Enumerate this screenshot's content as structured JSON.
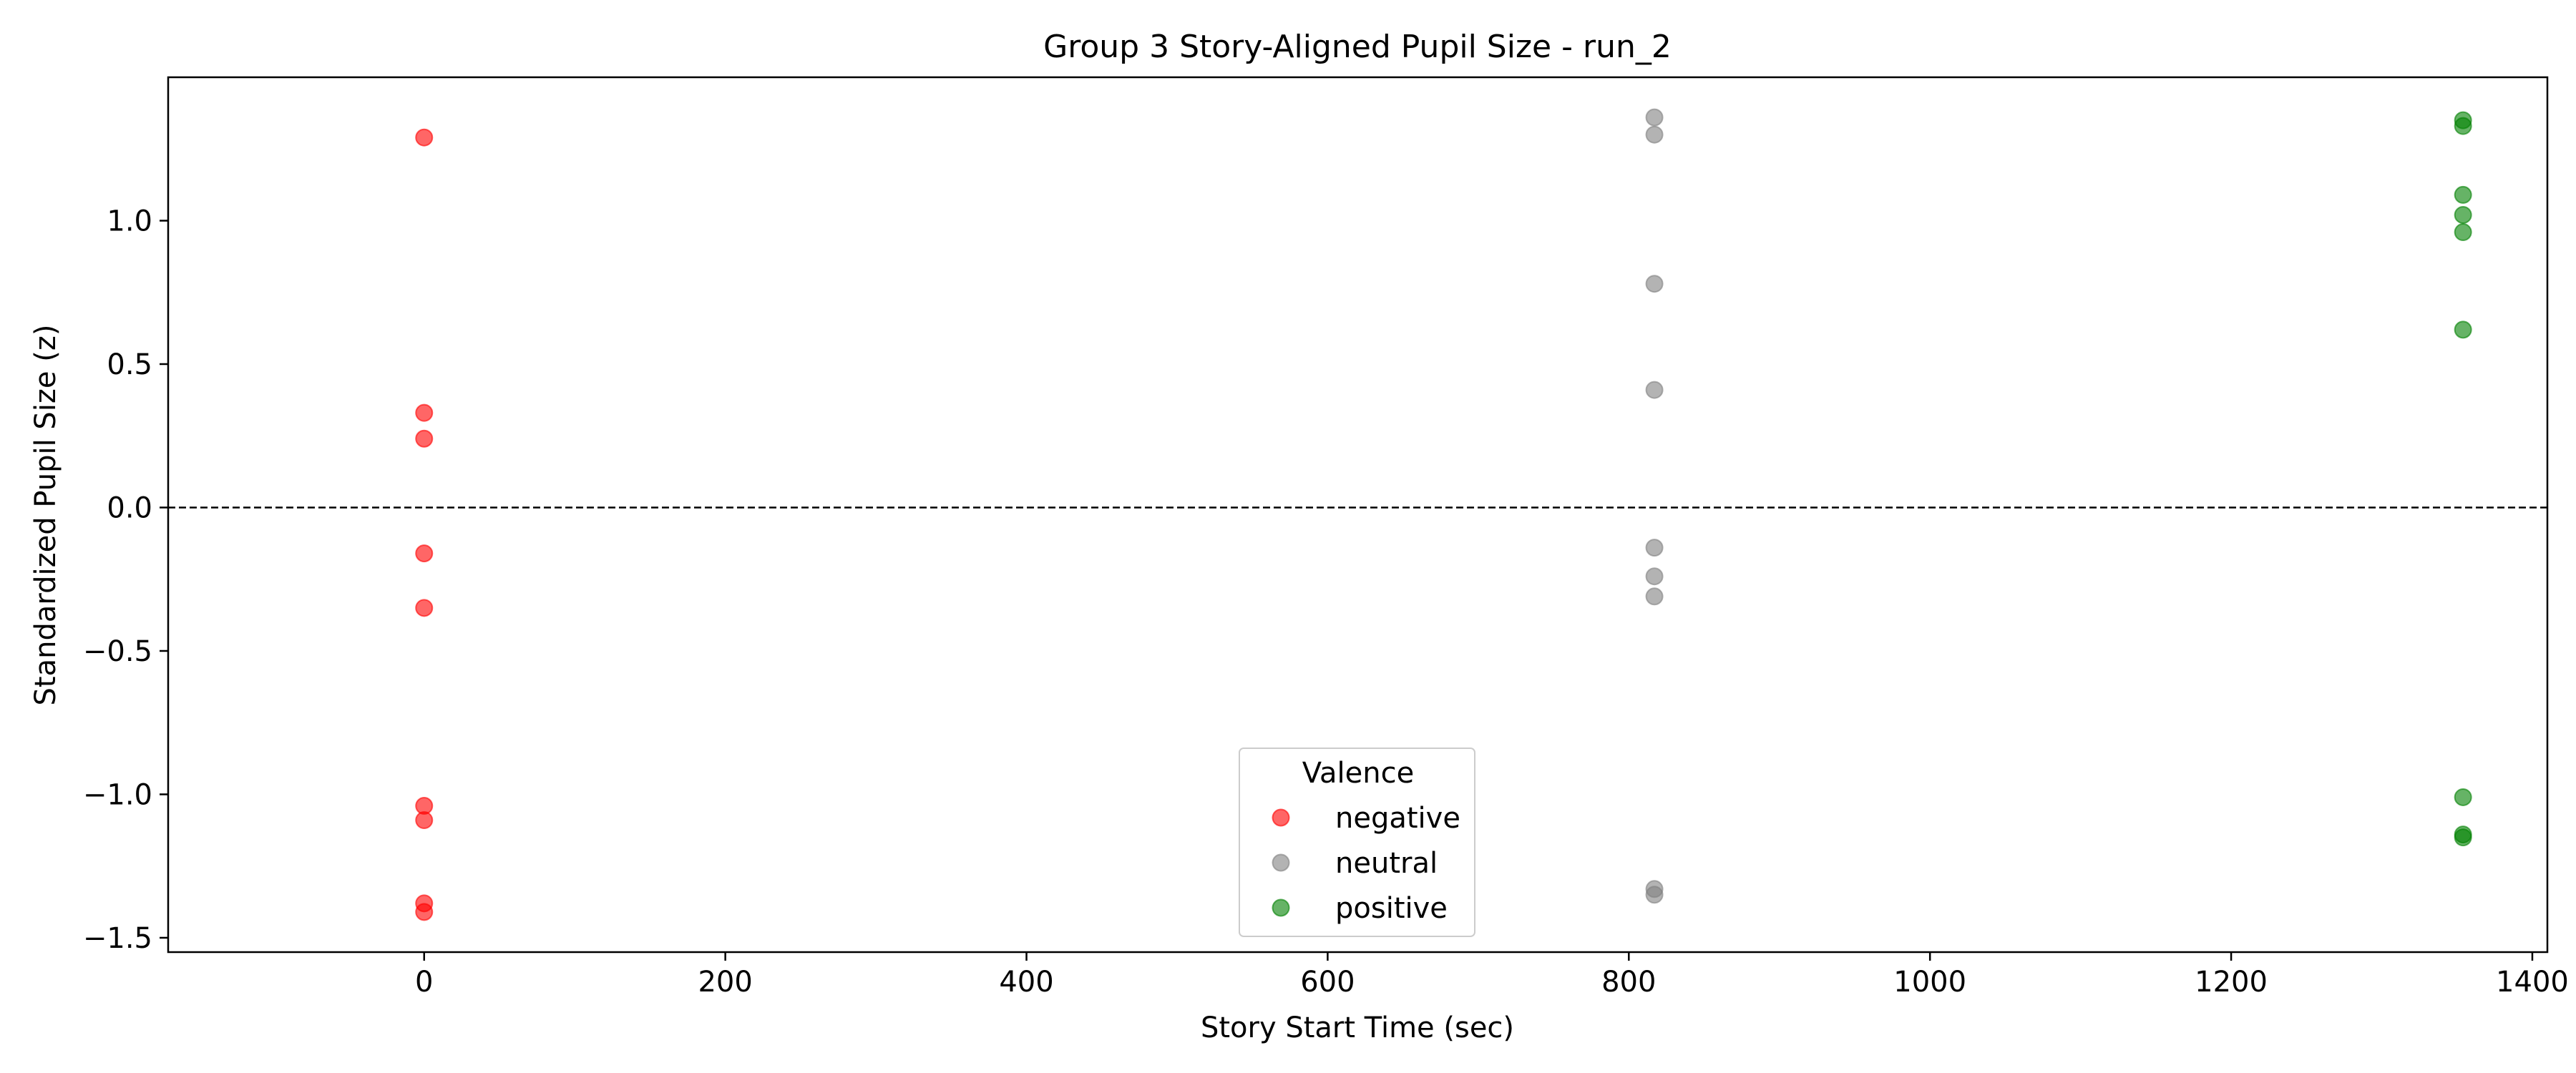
{
  "chart_data": {
    "type": "scatter",
    "title": "Group 3 Story-Aligned Pupil Size - run_2",
    "xlabel": "Story Start Time (sec)",
    "ylabel": "Standardized Pupil Size (z)",
    "xlim": [
      -170,
      1410
    ],
    "ylim": [
      -1.55,
      1.5
    ],
    "xticks": [
      0,
      200,
      400,
      600,
      800,
      1000,
      1200,
      1400
    ],
    "xtick_labels": [
      "0",
      "200",
      "400",
      "600",
      "800",
      "1000",
      "1200",
      "1400"
    ],
    "yticks": [
      -1.5,
      -1.0,
      -0.5,
      0.0,
      0.5,
      1.0
    ],
    "ytick_labels": [
      "−1.5",
      "−1.0",
      "−0.5",
      "0.0",
      "0.5",
      "1.0"
    ],
    "reference_line": {
      "y": 0.0,
      "style": "dashed",
      "color": "#000000"
    },
    "grid": false,
    "legend": {
      "title": "Valence",
      "placement": "lower-center",
      "entries": [
        "negative",
        "neutral",
        "positive"
      ]
    },
    "series": [
      {
        "name": "negative",
        "color": "#ff0000",
        "points": [
          [
            0,
            1.29
          ],
          [
            0,
            0.33
          ],
          [
            0,
            0.24
          ],
          [
            0,
            -0.16
          ],
          [
            0,
            -0.35
          ],
          [
            0,
            -1.04
          ],
          [
            0,
            -1.09
          ],
          [
            0,
            -1.38
          ],
          [
            0,
            -1.41
          ]
        ]
      },
      {
        "name": "neutral",
        "color": "#808080",
        "points": [
          [
            817,
            1.36
          ],
          [
            817,
            1.3
          ],
          [
            817,
            0.78
          ],
          [
            817,
            0.41
          ],
          [
            817,
            -0.14
          ],
          [
            817,
            -0.24
          ],
          [
            817,
            -0.31
          ],
          [
            817,
            -1.33
          ],
          [
            817,
            -1.35
          ]
        ]
      },
      {
        "name": "positive",
        "color": "#008000",
        "points": [
          [
            1354,
            1.35
          ],
          [
            1354,
            1.33
          ],
          [
            1354,
            1.09
          ],
          [
            1354,
            1.02
          ],
          [
            1354,
            0.96
          ],
          [
            1354,
            0.62
          ],
          [
            1354,
            -1.01
          ],
          [
            1354,
            -1.14
          ],
          [
            1354,
            -1.15
          ]
        ]
      }
    ]
  }
}
